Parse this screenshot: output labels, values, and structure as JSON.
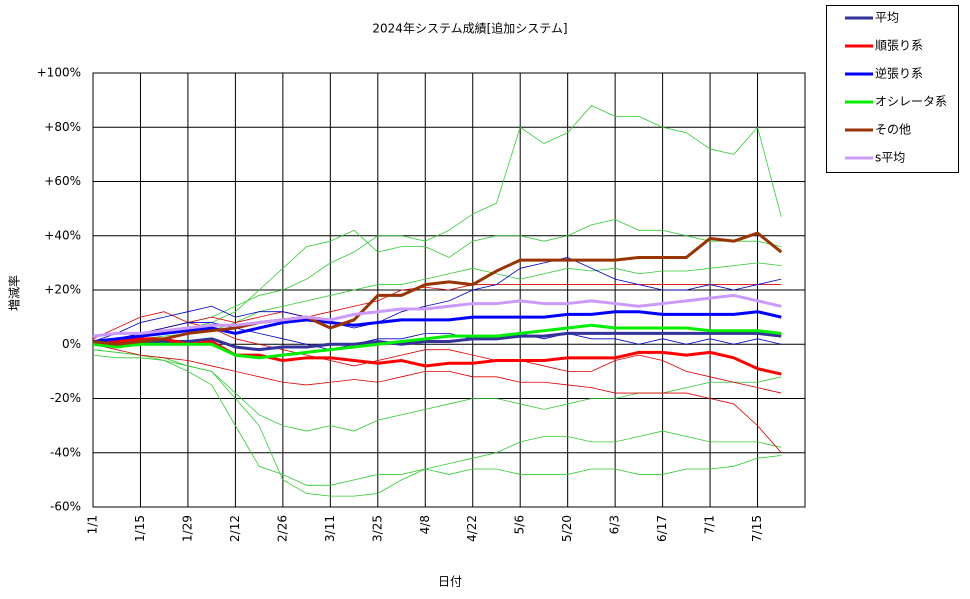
{
  "chart_data": {
    "type": "line",
    "title": "2024年システム成績[追加システム]",
    "x_label": "日付",
    "y_label": "増減率",
    "categories": [
      "1/1",
      null,
      "1/15",
      null,
      "1/29",
      null,
      "2/12",
      null,
      "2/26",
      null,
      "3/11",
      null,
      "3/25",
      null,
      "4/8",
      null,
      "4/22",
      null,
      "5/6",
      null,
      "5/20",
      null,
      "6/3",
      null,
      "6/17",
      null,
      "7/1",
      null,
      "7/15",
      null
    ],
    "ylim": [
      -60,
      100
    ],
    "yticks": [
      {
        "value": -60,
        "label": "-60%"
      },
      {
        "value": -40,
        "label": "-40%"
      },
      {
        "value": -20,
        "label": "-20%"
      },
      {
        "value": 0,
        "label": "0%"
      },
      {
        "value": 20,
        "label": "+20%"
      },
      {
        "value": 40,
        "label": "+40%"
      },
      {
        "value": 60,
        "label": "+60%"
      },
      {
        "value": 80,
        "label": "+80%"
      },
      {
        "value": 100,
        "label": "+100%"
      }
    ],
    "grid": true,
    "legend": "right",
    "series": [
      {
        "name": "平均",
        "color": "#333399",
        "values": [
          0,
          0,
          1,
          1,
          1,
          2,
          -1,
          -2,
          -1,
          -1,
          0,
          0,
          1,
          0,
          1,
          1,
          2,
          2,
          3,
          3,
          4,
          4,
          4,
          4,
          4,
          4,
          4,
          4,
          4,
          3
        ]
      },
      {
        "name": "順張り系",
        "color": "#ff0000",
        "values": [
          1,
          1,
          2,
          2,
          0,
          1,
          -4,
          -4,
          -6,
          -5,
          -5,
          -6,
          -7,
          -6,
          -8,
          -7,
          -7,
          -6,
          -6,
          -6,
          -5,
          -5,
          -5,
          -3,
          -3,
          -4,
          -3,
          -5,
          -9,
          -11
        ]
      },
      {
        "name": "逆張り系",
        "color": "#0000ff",
        "values": [
          1,
          2,
          3,
          4,
          5,
          6,
          4,
          6,
          8,
          9,
          8,
          7,
          8,
          9,
          9,
          9,
          10,
          10,
          10,
          10,
          11,
          11,
          12,
          12,
          11,
          11,
          11,
          11,
          12,
          10
        ]
      },
      {
        "name": "オシレータ系",
        "color": "#00ee00",
        "values": [
          0,
          -1,
          0,
          0,
          0,
          0,
          -4,
          -5,
          -4,
          -3,
          -2,
          -1,
          0,
          1,
          2,
          3,
          3,
          3,
          4,
          5,
          6,
          7,
          6,
          6,
          6,
          6,
          5,
          5,
          5,
          4
        ]
      },
      {
        "name": "その他",
        "color": "#993300",
        "values": [
          1,
          0,
          1,
          2,
          4,
          5,
          6,
          8,
          9,
          10,
          6,
          9,
          18,
          18,
          22,
          23,
          22,
          27,
          31,
          31,
          31,
          31,
          31,
          32,
          32,
          32,
          39,
          38,
          41,
          34
        ]
      },
      {
        "name": "s平均",
        "color": "#cc99ff",
        "values": [
          3,
          4,
          4,
          5,
          6,
          7,
          7,
          8,
          9,
          10,
          9,
          11,
          12,
          13,
          13,
          14,
          15,
          15,
          16,
          15,
          15,
          16,
          15,
          14,
          15,
          16,
          17,
          18,
          16,
          14
        ]
      }
    ],
    "systems": [
      {
        "color": "#33cc33",
        "values": [
          0,
          2,
          4,
          6,
          8,
          10,
          14,
          18,
          20,
          24,
          30,
          34,
          40,
          40,
          38,
          42,
          48,
          52,
          80,
          74,
          78,
          88,
          84,
          84,
          80,
          78,
          72,
          70,
          80,
          47
        ]
      },
      {
        "color": "#33cc33",
        "values": [
          0,
          1,
          3,
          5,
          6,
          8,
          12,
          20,
          28,
          36,
          38,
          42,
          34,
          36,
          36,
          32,
          38,
          40,
          40,
          38,
          40,
          44,
          46,
          42,
          42,
          40,
          38,
          38,
          38,
          36
        ]
      },
      {
        "color": "#33cc33",
        "values": [
          0,
          1,
          2,
          3,
          4,
          5,
          8,
          12,
          14,
          16,
          18,
          20,
          22,
          22,
          24,
          26,
          28,
          26,
          24,
          26,
          28,
          27,
          28,
          26,
          27,
          27,
          28,
          29,
          30,
          29
        ]
      },
      {
        "color": "#33cc33",
        "values": [
          -2,
          -3,
          -4,
          -6,
          -10,
          -15,
          -30,
          -45,
          -48,
          -52,
          -52,
          -50,
          -48,
          -48,
          -46,
          -48,
          -46,
          -46,
          -48,
          -48,
          -48,
          -46,
          -46,
          -48,
          -48,
          -46,
          -46,
          -45,
          -42,
          -41
        ]
      },
      {
        "color": "#33cc33",
        "values": [
          -4,
          -5,
          -5,
          -6,
          -8,
          -10,
          -20,
          -30,
          -50,
          -55,
          -56,
          -56,
          -55,
          -50,
          -46,
          -44,
          -42,
          -40,
          -36,
          -34,
          -34,
          -36,
          -36,
          -34,
          -32,
          -34,
          -36,
          -36,
          -36,
          -38
        ]
      },
      {
        "color": "#33cc33",
        "values": [
          -2,
          -3,
          -4,
          -5,
          -8,
          -10,
          -18,
          -26,
          -30,
          -32,
          -30,
          -32,
          -28,
          -26,
          -24,
          -22,
          -20,
          -20,
          -22,
          -24,
          -22,
          -20,
          -20,
          -18,
          -18,
          -16,
          -14,
          -14,
          -14,
          -12
        ]
      },
      {
        "color": "#dd0000",
        "values": [
          0,
          -2,
          -4,
          -5,
          -6,
          -8,
          -10,
          -12,
          -14,
          -15,
          -14,
          -13,
          -14,
          -12,
          -10,
          -10,
          -12,
          -12,
          -14,
          -14,
          -15,
          -16,
          -18,
          -18,
          -18,
          -18,
          -20,
          -22,
          -30,
          -40
        ]
      },
      {
        "color": "#dd0000",
        "values": [
          2,
          6,
          10,
          12,
          8,
          6,
          2,
          0,
          -2,
          -4,
          -6,
          -8,
          -6,
          -4,
          -2,
          -2,
          -4,
          -6,
          -6,
          -8,
          -10,
          -10,
          -6,
          -4,
          -6,
          -10,
          -12,
          -14,
          -16,
          -18
        ]
      },
      {
        "color": "#dd0000",
        "values": [
          0,
          2,
          4,
          6,
          8,
          10,
          8,
          10,
          12,
          10,
          12,
          14,
          16,
          20,
          21,
          20,
          22,
          22,
          22,
          22,
          22,
          22,
          22,
          22,
          22,
          22,
          22,
          22,
          22,
          22
        ]
      },
      {
        "color": "#0000cc",
        "values": [
          1,
          4,
          8,
          10,
          12,
          14,
          10,
          12,
          12,
          10,
          8,
          6,
          8,
          12,
          14,
          16,
          20,
          22,
          28,
          30,
          32,
          28,
          24,
          22,
          20,
          20,
          22,
          20,
          22,
          24
        ]
      },
      {
        "color": "#0000cc",
        "values": [
          0,
          2,
          4,
          6,
          8,
          8,
          6,
          4,
          2,
          0,
          -2,
          0,
          2,
          2,
          4,
          4,
          2,
          2,
          4,
          2,
          4,
          2,
          2,
          0,
          2,
          0,
          2,
          0,
          2,
          0
        ]
      }
    ]
  }
}
